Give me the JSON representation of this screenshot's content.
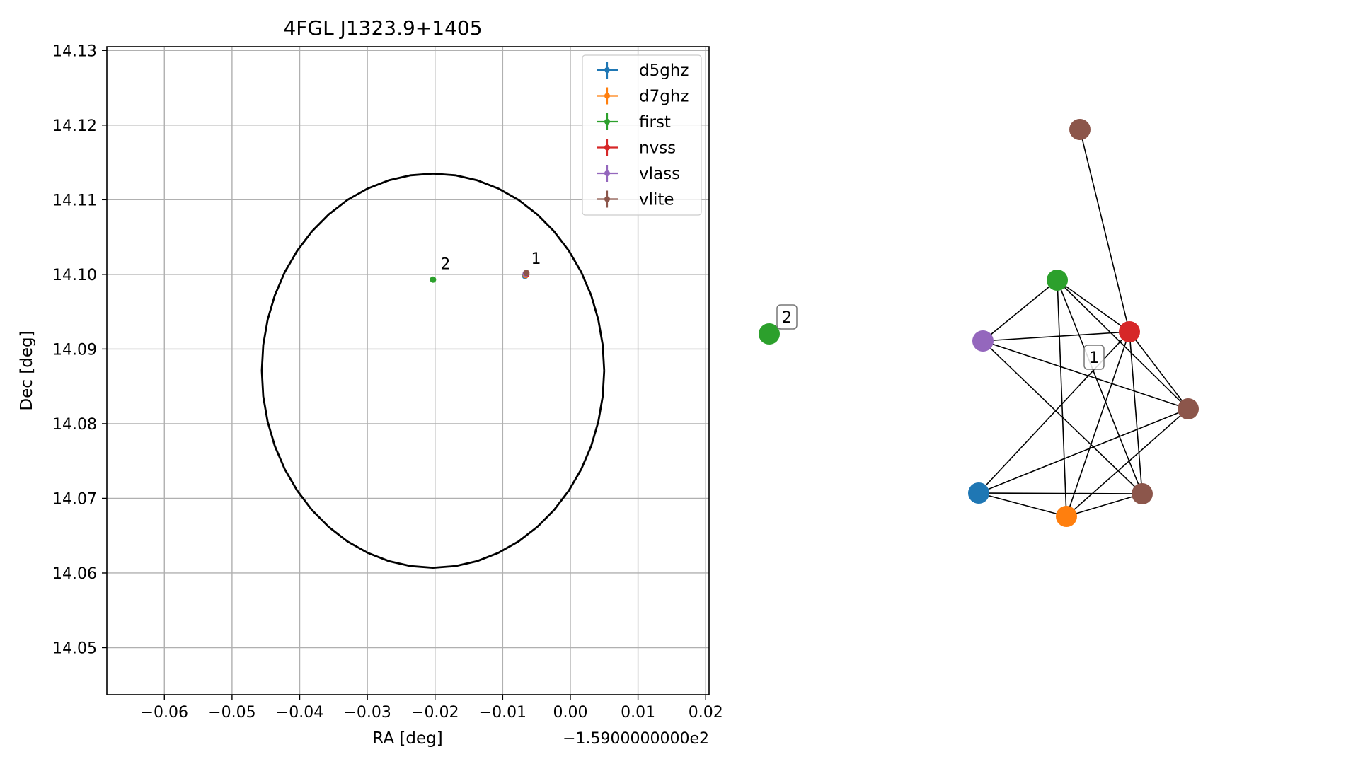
{
  "chart_data": [
    {
      "type": "scatter",
      "title": "4FGL J1323.9+1405",
      "xlabel": "RA [deg]",
      "ylabel": "Dec [deg]",
      "x_offset_label": "−1.5900000000e2",
      "xlim": [
        -0.0685,
        0.0205
      ],
      "ylim": [
        14.0437,
        14.1305
      ],
      "xticks": [
        -0.06,
        -0.05,
        -0.04,
        -0.03,
        -0.02,
        -0.01,
        0.0,
        0.01,
        0.02
      ],
      "xtick_labels": [
        "−0.06",
        "−0.05",
        "−0.04",
        "−0.03",
        "−0.02",
        "−0.01",
        "0.00",
        "0.01",
        "0.02"
      ],
      "yticks": [
        14.05,
        14.06,
        14.07,
        14.08,
        14.09,
        14.1,
        14.11,
        14.12,
        14.13
      ],
      "ytick_labels": [
        "14.05",
        "14.06",
        "14.07",
        "14.08",
        "14.09",
        "14.10",
        "14.11",
        "14.12",
        "14.13"
      ],
      "grid": true,
      "legend_position": "top-right",
      "legend": [
        {
          "name": "d5ghz",
          "color": "#1f77b4"
        },
        {
          "name": "d7ghz",
          "color": "#ff7f0e"
        },
        {
          "name": "first",
          "color": "#2ca02c"
        },
        {
          "name": "nvss",
          "color": "#d62728"
        },
        {
          "name": "vlass",
          "color": "#9467bd"
        },
        {
          "name": "vlite",
          "color": "#8c564b"
        }
      ],
      "ellipse": {
        "center_x": -0.0203,
        "center_y": 14.0871,
        "semi_x": 0.0253,
        "semi_y": 0.0264
      },
      "points": [
        {
          "series": "first",
          "x": -0.0203,
          "y": 14.0993,
          "color": "#2ca02c"
        },
        {
          "series": "d5ghz",
          "x": -0.0067,
          "y": 14.0998,
          "color": "#1f77b4"
        },
        {
          "series": "d7ghz",
          "x": -0.0066,
          "y": 14.0999,
          "color": "#ff7f0e"
        },
        {
          "series": "nvss",
          "x": -0.0065,
          "y": 14.1,
          "color": "#d62728"
        },
        {
          "series": "vlass",
          "x": -0.0066,
          "y": 14.1001,
          "color": "#9467bd"
        },
        {
          "series": "vlite",
          "x": -0.0065,
          "y": 14.1002,
          "color": "#8c564b"
        }
      ],
      "labels": [
        {
          "text": "1",
          "x": -0.0058,
          "y": 14.1014
        },
        {
          "text": "2",
          "x": -0.0192,
          "y": 14.1007
        }
      ]
    },
    {
      "type": "network",
      "nodes": [
        {
          "id": "first_2",
          "series": "first",
          "color": "#2ca02c"
        },
        {
          "id": "vlite_top",
          "series": "vlite",
          "color": "#8c564b"
        },
        {
          "id": "first_1",
          "series": "first",
          "color": "#2ca02c"
        },
        {
          "id": "vlass",
          "series": "vlass",
          "color": "#9467bd"
        },
        {
          "id": "nvss",
          "series": "nvss",
          "color": "#d62728"
        },
        {
          "id": "vlite_right",
          "series": "vlite",
          "color": "#8c564b"
        },
        {
          "id": "d5ghz",
          "series": "d5ghz",
          "color": "#1f77b4"
        },
        {
          "id": "d7ghz",
          "series": "d7ghz",
          "color": "#ff7f0e"
        },
        {
          "id": "vlite_bottom",
          "series": "vlite",
          "color": "#8c564b"
        }
      ],
      "edges": [
        [
          "vlite_top",
          "nvss"
        ],
        [
          "first_1",
          "vlass"
        ],
        [
          "first_1",
          "nvss"
        ],
        [
          "first_1",
          "vlite_right"
        ],
        [
          "first_1",
          "d7ghz"
        ],
        [
          "first_1",
          "vlite_bottom"
        ],
        [
          "vlass",
          "nvss"
        ],
        [
          "vlass",
          "vlite_right"
        ],
        [
          "vlass",
          "vlite_bottom"
        ],
        [
          "nvss",
          "vlite_right"
        ],
        [
          "nvss",
          "d5ghz"
        ],
        [
          "nvss",
          "d7ghz"
        ],
        [
          "nvss",
          "vlite_bottom"
        ],
        [
          "d5ghz",
          "vlite_right"
        ],
        [
          "d5ghz",
          "d7ghz"
        ],
        [
          "d5ghz",
          "vlite_bottom"
        ],
        [
          "d7ghz",
          "vlite_right"
        ],
        [
          "d7ghz",
          "vlite_bottom"
        ]
      ],
      "group_labels": [
        {
          "text": "1",
          "group": "cluster"
        },
        {
          "text": "2",
          "group": "first_2"
        }
      ]
    }
  ]
}
